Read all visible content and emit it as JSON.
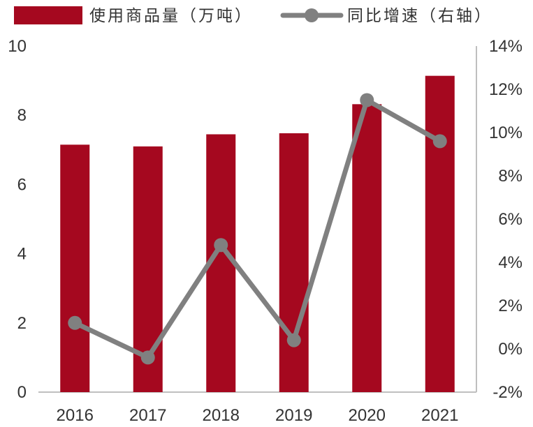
{
  "chart_data": {
    "type": "bar",
    "categories": [
      "2016",
      "2017",
      "2018",
      "2019",
      "2020",
      "2021"
    ],
    "series": [
      {
        "name": "使用商品量（万吨）",
        "type": "bar",
        "axis": "left",
        "color": "#a5081f",
        "values": [
          7.15,
          7.1,
          7.45,
          7.48,
          8.32,
          9.14
        ]
      },
      {
        "name": "同比增速（右轴）",
        "type": "line",
        "axis": "right",
        "color": "#808080",
        "values": [
          1.2,
          -0.4,
          4.8,
          0.4,
          11.5,
          9.6
        ]
      }
    ],
    "y_left": {
      "min": 0,
      "max": 10,
      "ticks": [
        "0",
        "2",
        "4",
        "6",
        "8",
        "10"
      ]
    },
    "y_right": {
      "min": -2,
      "max": 14,
      "ticks": [
        "-2%",
        "0%",
        "2%",
        "4%",
        "6%",
        "8%",
        "10%",
        "12%",
        "14%"
      ]
    },
    "legend_position": "top",
    "grid": false
  }
}
